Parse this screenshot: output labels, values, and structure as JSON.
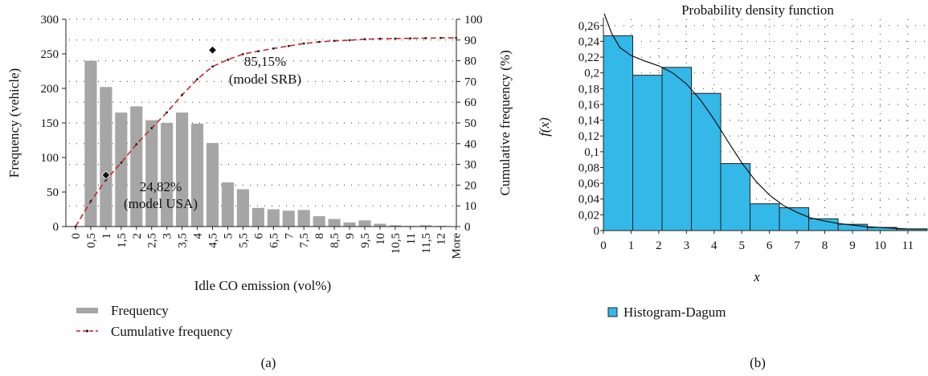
{
  "chart_data": [
    {
      "type": "bar",
      "panel_label": "(a)",
      "xlabel": "Idle CO emission (vol%)",
      "ylabel": "Frequency (vehicle)",
      "y2label": "Cumulative frequency (%)",
      "ylim": [
        0,
        300
      ],
      "y2lim": [
        0,
        100
      ],
      "yticks": [
        "0",
        "50",
        "100",
        "150",
        "200",
        "250",
        "300"
      ],
      "y2ticks": [
        "0",
        "10",
        "20",
        "30",
        "40",
        "50",
        "60",
        "70",
        "80",
        "90",
        "100"
      ],
      "categories": [
        "0",
        "0,5",
        "1",
        "1,5",
        "2",
        "2,5",
        "3",
        "3,5",
        "4",
        "4,5",
        "5",
        "5,5",
        "6",
        "6,5",
        "7",
        "7,5",
        "8",
        "8,5",
        "9",
        "9,5",
        "10",
        "10,5",
        "11",
        "11,5",
        "12",
        "More"
      ],
      "series": [
        {
          "name": "Frequency",
          "kind": "bar",
          "color": "#a6a6a6",
          "values": [
            0,
            240,
            202,
            165,
            174,
            154,
            150,
            165,
            149,
            121,
            64,
            54,
            27,
            25,
            23,
            24,
            15,
            11,
            6,
            9,
            4,
            2,
            1,
            2,
            1,
            0
          ]
        },
        {
          "name": "Cumulative frequency",
          "kind": "line",
          "axis": "right",
          "color": "#c0282d",
          "values": [
            0,
            12.2,
            22.5,
            30.8,
            39.7,
            47.5,
            55.1,
            63.5,
            71.1,
            77.2,
            80.5,
            83.2,
            84.6,
            85.9,
            87.1,
            88.3,
            89.1,
            89.6,
            89.9,
            90.4,
            90.6,
            90.7,
            90.8,
            90.9,
            91.0,
            91.0
          ]
        }
      ],
      "annotations": [
        {
          "text": "24,82%",
          "text2": "(model USA)",
          "x": 1,
          "y": 24.82
        },
        {
          "text": "85,15%",
          "text2": "(model SRB)",
          "x": 4.5,
          "y": 85.15
        }
      ],
      "legend": {
        "placement": "bottom-left",
        "items": [
          "Frequency",
          "Cumulative frequency"
        ]
      }
    },
    {
      "type": "bar",
      "panel_label": "(b)",
      "title": "Probability density function",
      "xlabel": "x",
      "ylabel": "f(x)",
      "xlim": [
        0,
        11.7
      ],
      "ylim": [
        0,
        0.27
      ],
      "xticks": [
        "0",
        "1",
        "2",
        "3",
        "4",
        "5",
        "6",
        "7",
        "8",
        "9",
        "10",
        "11"
      ],
      "yticks": [
        "0",
        "0,02",
        "0,04",
        "0,06",
        "0,08",
        "0,1",
        "0,12",
        "0,14",
        "0,16",
        "0,18",
        "0,2",
        "0,22",
        "0,24",
        "0,26"
      ],
      "bins": [
        {
          "x0": 0.0,
          "x1": 1.06,
          "y": 0.247
        },
        {
          "x0": 1.06,
          "x1": 2.12,
          "y": 0.197
        },
        {
          "x0": 2.12,
          "x1": 3.18,
          "y": 0.207
        },
        {
          "x0": 3.18,
          "x1": 4.24,
          "y": 0.174
        },
        {
          "x0": 4.24,
          "x1": 5.3,
          "y": 0.085
        },
        {
          "x0": 5.3,
          "x1": 6.36,
          "y": 0.034
        },
        {
          "x0": 6.36,
          "x1": 7.42,
          "y": 0.029
        },
        {
          "x0": 7.42,
          "x1": 8.48,
          "y": 0.015
        },
        {
          "x0": 8.48,
          "x1": 9.54,
          "y": 0.008
        },
        {
          "x0": 9.54,
          "x1": 10.6,
          "y": 0.004
        },
        {
          "x0": 10.6,
          "x1": 11.7,
          "y": 0.002
        }
      ],
      "curve": {
        "x": [
          0.03,
          0.3,
          0.6,
          1.0,
          1.5,
          2.0,
          2.5,
          3.0,
          3.5,
          4.0,
          4.5,
          5.0,
          5.5,
          6.0,
          6.5,
          7.0,
          7.5,
          8.0,
          8.5,
          9.0,
          9.5,
          10.0,
          10.5,
          11.0,
          11.7
        ],
        "y": [
          0.275,
          0.25,
          0.232,
          0.222,
          0.215,
          0.209,
          0.2,
          0.186,
          0.166,
          0.141,
          0.113,
          0.086,
          0.063,
          0.045,
          0.032,
          0.023,
          0.016,
          0.012,
          0.009,
          0.007,
          0.005,
          0.004,
          0.003,
          0.002,
          0.002
        ]
      },
      "bar_color": "#33b8e8",
      "legend": {
        "placement": "bottom-left",
        "items": [
          "Histogram-Dagum"
        ]
      }
    }
  ]
}
